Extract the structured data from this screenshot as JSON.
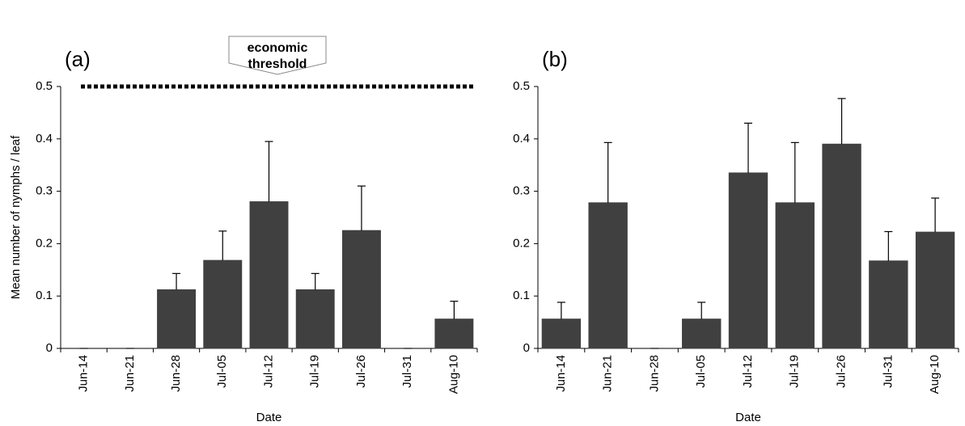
{
  "chart_data": [
    {
      "type": "bar",
      "title": "(a)",
      "x_label": "Date",
      "y_label": "Mean number of nymphs / leaf",
      "categories": [
        "Jun-14",
        "Jun-21",
        "Jun-28",
        "Jul-05",
        "Jul-12",
        "Jul-19",
        "Jul-26",
        "Jul-31",
        "Aug-10"
      ],
      "values": [
        0,
        0,
        0.112,
        0.168,
        0.28,
        0.112,
        0.225,
        0,
        0.056
      ],
      "errors": [
        0,
        0,
        0.031,
        0.056,
        0.115,
        0.031,
        0.085,
        0,
        0.034
      ],
      "color": "#404040",
      "ylim": [
        0,
        0.5
      ],
      "yticks": [
        0,
        0.1,
        0.2,
        0.3,
        0.4,
        0.5
      ],
      "threshold": {
        "value": 0.5,
        "label": [
          "economic",
          "threshold"
        ]
      }
    },
    {
      "type": "bar",
      "title": "(b)",
      "x_label": "Date",
      "categories": [
        "Jun-14",
        "Jun-21",
        "Jun-28",
        "Jul-05",
        "Jul-12",
        "Jul-19",
        "Jul-26",
        "Jul-31",
        "Aug-10"
      ],
      "values": [
        0.056,
        0.278,
        0,
        0.056,
        0.335,
        0.278,
        0.39,
        0.167,
        0.222
      ],
      "errors": [
        0.032,
        0.115,
        0,
        0.032,
        0.095,
        0.115,
        0.087,
        0.056,
        0.065
      ],
      "color": "#404040",
      "ylim": [
        0,
        0.5
      ],
      "yticks": [
        0,
        0.1,
        0.2,
        0.3,
        0.4,
        0.5
      ]
    }
  ]
}
